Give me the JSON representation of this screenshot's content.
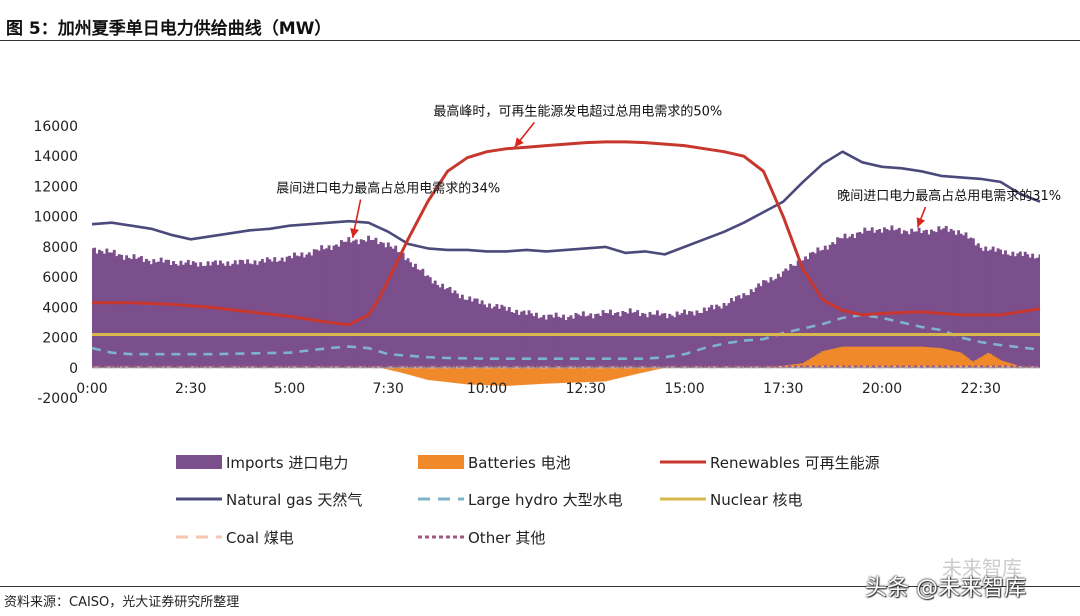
{
  "title": "图 5：加州夏季单日电力供给曲线（MW）",
  "source": "资料来源：CAISO，光大证券研究所整理",
  "watermark": {
    "top": "未来智库",
    "bottom": "头条 @未来智库"
  },
  "chart_data": {
    "type": "area",
    "title": "图 5：加州夏季单日电力供给曲线（MW）",
    "xlabel": "",
    "ylabel": "",
    "x_range": [
      0,
      24
    ],
    "ylim": [
      -2000,
      16000
    ],
    "yticks": [
      -2000,
      0,
      2000,
      4000,
      6000,
      8000,
      10000,
      12000,
      14000,
      16000
    ],
    "ytick_labels": [
      "-2000",
      "0",
      "2000",
      "4000",
      "6000",
      "8000",
      "10000",
      "12000",
      "14000",
      "16000"
    ],
    "xtick_labels": [
      "0:00",
      "2:30",
      "5:00",
      "7:30",
      "10:00",
      "12:30",
      "15:00",
      "17:30",
      "20:00",
      "22:30"
    ],
    "grid": false,
    "legend_position": "bottom",
    "annotations": [
      {
        "text": "最高峰时，可再生能源发电超过总用电需求的50%",
        "x": 12.3,
        "y": 16700,
        "target_x": 10.7,
        "target_y": 14600
      },
      {
        "text": "晨间进口电力最高占总用电需求的34%",
        "x": 7.5,
        "y": 11600,
        "target_x": 6.6,
        "target_y": 8600
      },
      {
        "text": "晚间进口电力最高占总用电需求的31%",
        "x": 21.7,
        "y": 11100,
        "target_x": 20.9,
        "target_y": 9300
      }
    ],
    "series": [
      {
        "name": "Imports 进口电力",
        "style": "area",
        "color": "#7b4f8c",
        "x": [
          0,
          0.5,
          1,
          1.5,
          2,
          2.5,
          3,
          3.5,
          4,
          4.5,
          5,
          5.5,
          6,
          6.5,
          7,
          7.5,
          8,
          8.5,
          9,
          9.5,
          10,
          10.5,
          11,
          11.5,
          12,
          12.5,
          13,
          13.5,
          14,
          14.5,
          15,
          15.5,
          16,
          16.5,
          17,
          17.5,
          18,
          18.5,
          19,
          19.5,
          20,
          20.5,
          21,
          21.5,
          22,
          22.5,
          23,
          23.5,
          24
        ],
        "values": [
          7900,
          7600,
          7300,
          7100,
          7000,
          6900,
          6900,
          6950,
          7000,
          7100,
          7300,
          7600,
          8000,
          8400,
          8500,
          8200,
          7200,
          6000,
          5200,
          4600,
          4200,
          3900,
          3600,
          3400,
          3400,
          3500,
          3600,
          3700,
          3600,
          3500,
          3600,
          3800,
          4200,
          4800,
          5600,
          6300,
          7200,
          7900,
          8600,
          9000,
          9200,
          9100,
          9000,
          9200,
          9000,
          8000,
          7700,
          7500,
          7400
        ]
      },
      {
        "name": "Batteries 电池",
        "style": "area",
        "color": "#f0892a",
        "x": [
          0,
          5,
          7.3,
          7.8,
          8.5,
          9.5,
          10.5,
          11.5,
          12.5,
          13,
          13.8,
          14.5,
          15,
          17,
          18,
          18.5,
          19,
          20,
          21,
          21.5,
          22,
          22.3,
          22.7,
          23,
          23.5,
          24
        ],
        "values": [
          0,
          0,
          0,
          -300,
          -800,
          -1100,
          -1200,
          -1050,
          -950,
          -900,
          -400,
          0,
          0,
          0,
          300,
          1100,
          1400,
          1400,
          1400,
          1300,
          1000,
          400,
          1000,
          500,
          100,
          0
        ]
      },
      {
        "name": "Renewables 可再生能源",
        "style": "line",
        "color": "#c8372d",
        "x": [
          0,
          1,
          2,
          3,
          4,
          5,
          6,
          6.5,
          7,
          7.25,
          7.5,
          8,
          8.5,
          9,
          9.5,
          10,
          10.5,
          11,
          11.5,
          12,
          12.5,
          13,
          13.5,
          14,
          14.5,
          15,
          15.5,
          16,
          16.5,
          17,
          17.5,
          18,
          18.5,
          19,
          19.5,
          20,
          21,
          22,
          23,
          24
        ],
        "values": [
          4300,
          4300,
          4200,
          4000,
          3700,
          3400,
          3000,
          2850,
          3500,
          4500,
          5800,
          8500,
          11000,
          13000,
          13900,
          14300,
          14500,
          14600,
          14700,
          14800,
          14900,
          14950,
          14950,
          14900,
          14800,
          14700,
          14500,
          14300,
          14000,
          13000,
          10000,
          6500,
          4500,
          3800,
          3500,
          3600,
          3700,
          3500,
          3500,
          3900
        ]
      },
      {
        "name": "Natural gas 天然气",
        "style": "line",
        "color": "#4b4a7a",
        "x": [
          0,
          0.5,
          1,
          1.5,
          2,
          2.5,
          3,
          3.5,
          4,
          4.5,
          5,
          5.5,
          6,
          6.5,
          7,
          7.5,
          8,
          8.5,
          9,
          9.5,
          10,
          10.5,
          11,
          11.5,
          12,
          12.5,
          13,
          13.5,
          14,
          14.5,
          15,
          15.5,
          16,
          16.5,
          17,
          17.5,
          18,
          18.5,
          19,
          19.5,
          20,
          20.5,
          21,
          21.5,
          22,
          22.5,
          23,
          23.5,
          24
        ],
        "values": [
          9500,
          9600,
          9400,
          9200,
          8800,
          8500,
          8700,
          8900,
          9100,
          9200,
          9400,
          9500,
          9600,
          9700,
          9600,
          9000,
          8200,
          7900,
          7800,
          7800,
          7700,
          7700,
          7800,
          7700,
          7800,
          7900,
          8000,
          7600,
          7700,
          7500,
          8000,
          8500,
          9000,
          9600,
          10300,
          11000,
          12300,
          13500,
          14300,
          13600,
          13300,
          13200,
          13000,
          12700,
          12600,
          12500,
          12300,
          11500,
          11000
        ]
      },
      {
        "name": "Large hydro 大型水电",
        "style": "dashed",
        "color": "#7fb3c9",
        "x": [
          0,
          0.5,
          1,
          2,
          3,
          4,
          5,
          6,
          6.5,
          7,
          7.5,
          8,
          8.5,
          9,
          10,
          11,
          12,
          13,
          13.5,
          14,
          14.5,
          15,
          15.5,
          16,
          16.5,
          17,
          17.5,
          18,
          18.5,
          19,
          19.5,
          20,
          20.5,
          21,
          21.5,
          22,
          22.5,
          23,
          24
        ],
        "values": [
          1300,
          1000,
          900,
          900,
          900,
          950,
          1000,
          1300,
          1400,
          1300,
          900,
          800,
          700,
          650,
          600,
          600,
          600,
          600,
          600,
          600,
          700,
          900,
          1300,
          1600,
          1800,
          1900,
          2300,
          2600,
          2900,
          3300,
          3500,
          3300,
          3000,
          2700,
          2500,
          2000,
          1700,
          1500,
          1200
        ]
      },
      {
        "name": "Nuclear 核电",
        "style": "line",
        "color": "#d8b84a",
        "x": [
          0,
          24
        ],
        "values": [
          2200,
          2200
        ]
      },
      {
        "name": "Coal 煤电",
        "style": "dashed",
        "color": "#f5c6b0",
        "x": [
          0,
          24
        ],
        "values": [
          20,
          20
        ]
      },
      {
        "name": "Other 其他",
        "style": "dotted",
        "color": "#a05a80",
        "x": [
          0,
          24
        ],
        "values": [
          80,
          80
        ]
      }
    ]
  }
}
